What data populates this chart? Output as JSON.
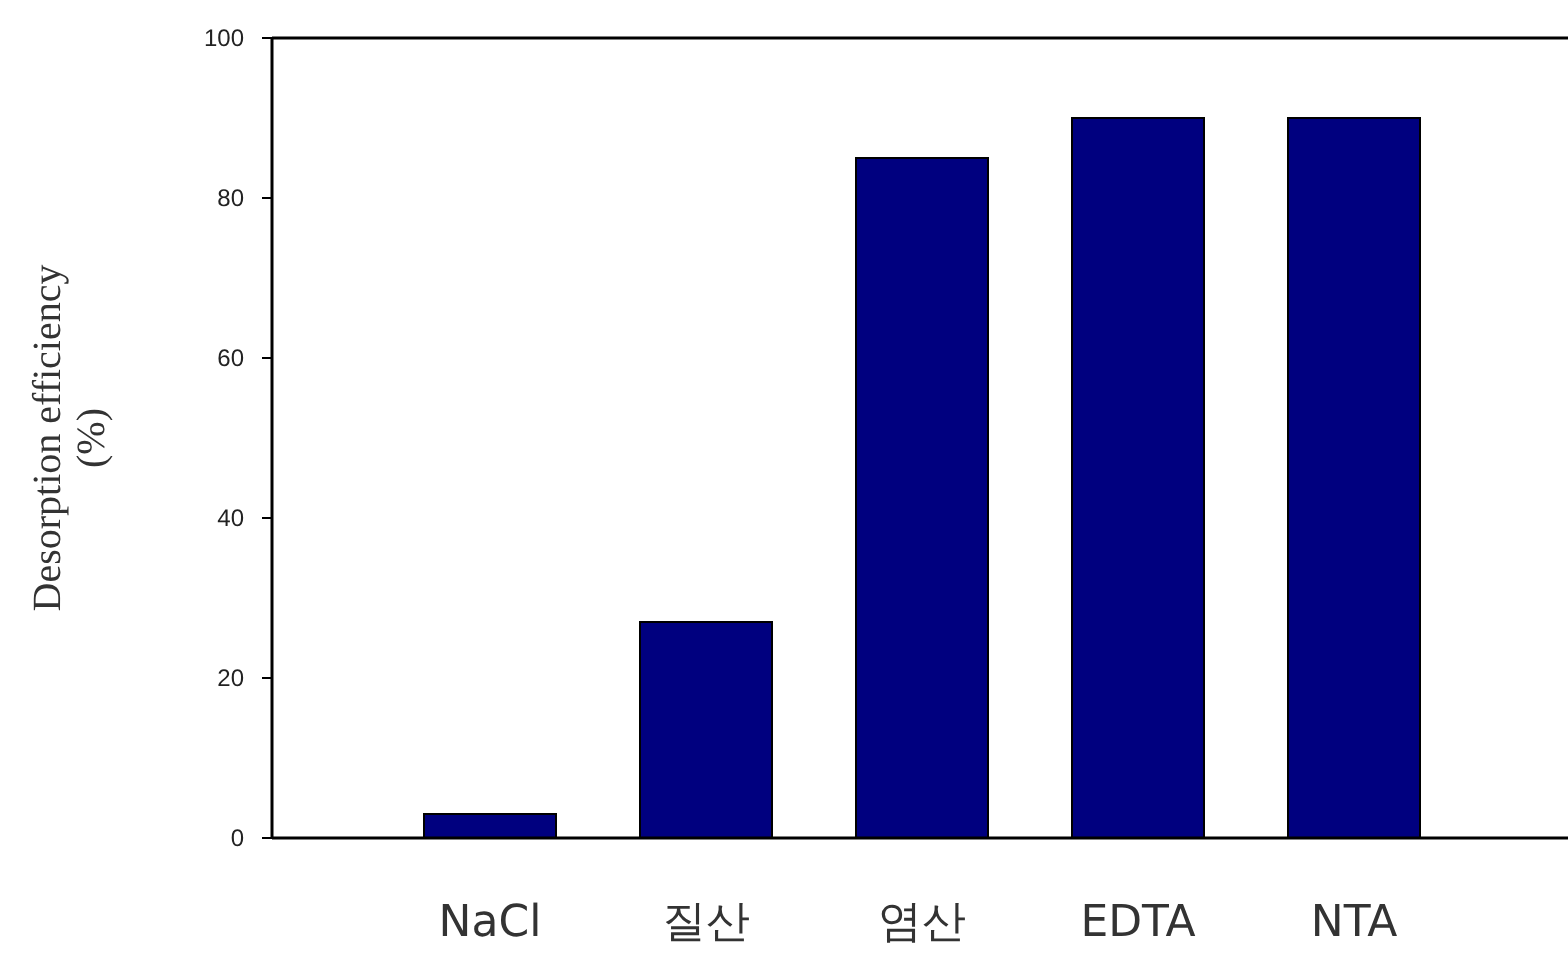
{
  "chart_data": {
    "type": "bar",
    "ylabel": "Desorption efficiency\n(%)",
    "categories": [
      "NaCl",
      "질산",
      "염산",
      "EDTA",
      "NTA"
    ],
    "values": [
      3,
      27,
      85,
      90,
      90
    ],
    "color": "#00007f",
    "ylim": [
      0,
      100
    ],
    "yticks": [
      0,
      20,
      40,
      60,
      80,
      100
    ],
    "grid": false
  }
}
